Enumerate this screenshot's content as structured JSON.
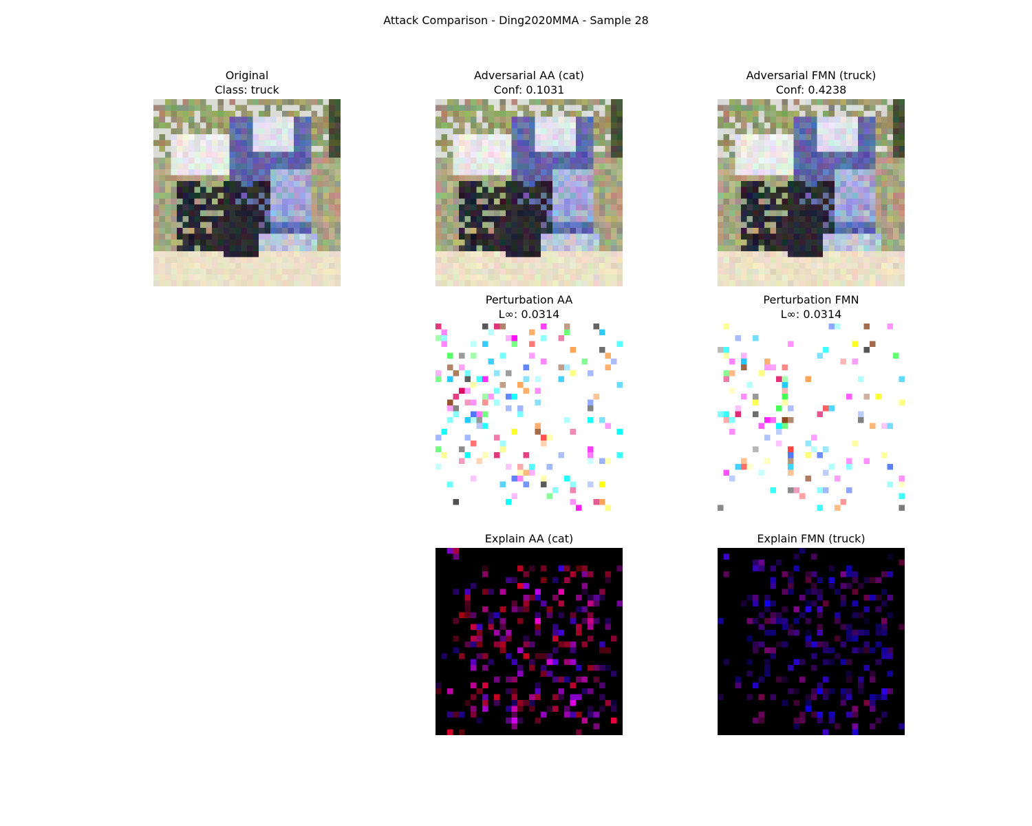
{
  "figure": {
    "title": "Attack Comparison - Ding2020MMA - Sample 28"
  },
  "panels": {
    "original": {
      "line1": "Original",
      "line2": "Class: truck"
    },
    "adv_aa": {
      "line1": "Adversarial AA (cat)",
      "line2": "Conf: 0.1031"
    },
    "adv_fmn": {
      "line1": "Adversarial FMN (truck)",
      "line2": "Conf: 0.4238"
    },
    "pert_aa": {
      "line1": "Perturbation AA",
      "line2": "L∞: 0.0314"
    },
    "pert_fmn": {
      "line1": "Perturbation FMN",
      "line2": "L∞: 0.0314"
    },
    "explain_aa": {
      "line1": "Explain AA (cat)"
    },
    "explain_fmn": {
      "line1": "Explain FMN (truck)"
    }
  }
}
